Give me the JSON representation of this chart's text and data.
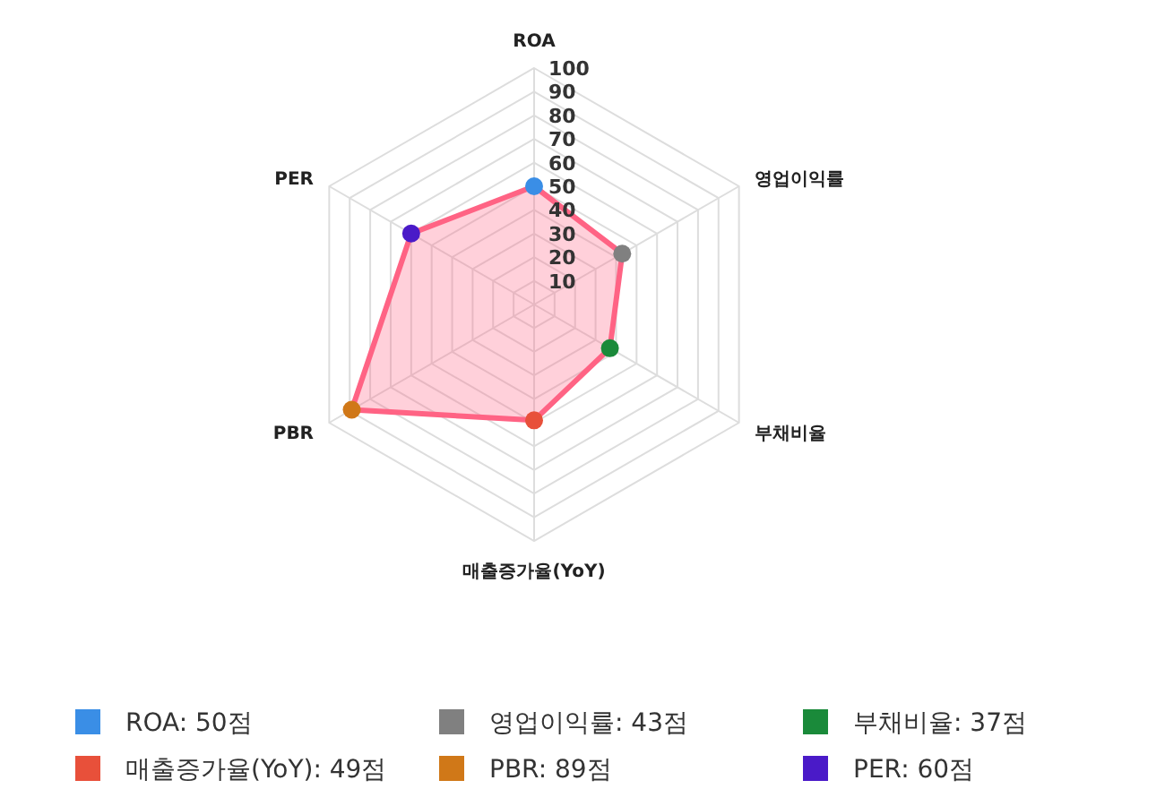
{
  "chart_data": {
    "type": "radar",
    "categories": [
      "ROA",
      "영업이익률",
      "부채비율",
      "매출증가율(YoY)",
      "PBR",
      "PER"
    ],
    "series": [
      {
        "color": "#ff6384",
        "values": [
          50,
          43,
          37,
          49,
          89,
          60
        ],
        "colors": [
          "#3a8ee6",
          "#808080",
          "#1a8a3a",
          "#e8503a",
          "#d07818",
          "#4a1ac8"
        ]
      }
    ],
    "annotations": [
      "ROA: 50점",
      "영업이익률: 43점",
      "부채비율: 37점",
      "매출증가율(YoY): 49점",
      "PBR: 89점",
      "PER: 60점"
    ],
    "ylim": [
      0,
      100
    ],
    "yticks": [
      10,
      20,
      30,
      40,
      50,
      60,
      70,
      80,
      90,
      100
    ],
    "grid": true,
    "marker": "circle"
  }
}
